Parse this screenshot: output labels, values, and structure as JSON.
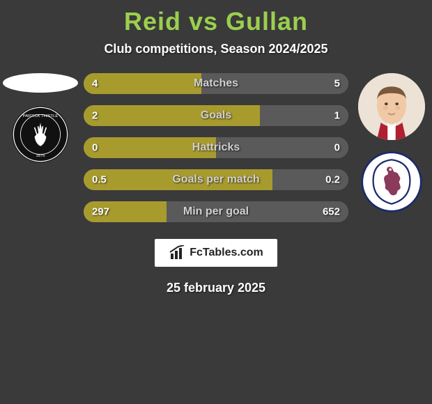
{
  "title_text": "Reid vs Gullan",
  "title_color": "#9bcf4e",
  "subtitle": "Club competitions, Season 2024/2025",
  "date": "25 february 2025",
  "brand": "FcTables.com",
  "colors": {
    "left_bar": "#a89b2e",
    "right_bar": "#5a5a5a",
    "bar_track": "#5a5a5a",
    "text_muted": "#d0d0d0",
    "value_text": "#ffffff"
  },
  "left": {
    "player_name": "Reid",
    "club_name": "Partick Thistle",
    "club_crest_bg": "#111111",
    "club_crest_fg": "#ffffff"
  },
  "right": {
    "player_name": "Gullan",
    "club_name": "Raith",
    "club_crest_bg": "#ffffff",
    "club_crest_fg": "#7a2a4a",
    "club_crest_border": "#1a2a6b"
  },
  "stats": [
    {
      "label": "Matches",
      "left_val": "4",
      "right_val": "5",
      "left_pct": 44.4,
      "right_pct": 55.6
    },
    {
      "label": "Goals",
      "left_val": "2",
      "right_val": "1",
      "left_pct": 66.7,
      "right_pct": 33.3
    },
    {
      "label": "Hattricks",
      "left_val": "0",
      "right_val": "0",
      "left_pct": 50.0,
      "right_pct": 50.0
    },
    {
      "label": "Goals per match",
      "left_val": "0.5",
      "right_val": "0.2",
      "left_pct": 71.4,
      "right_pct": 28.6
    },
    {
      "label": "Min per goal",
      "left_val": "297",
      "right_val": "652",
      "left_pct": 31.3,
      "right_pct": 68.7
    }
  ]
}
